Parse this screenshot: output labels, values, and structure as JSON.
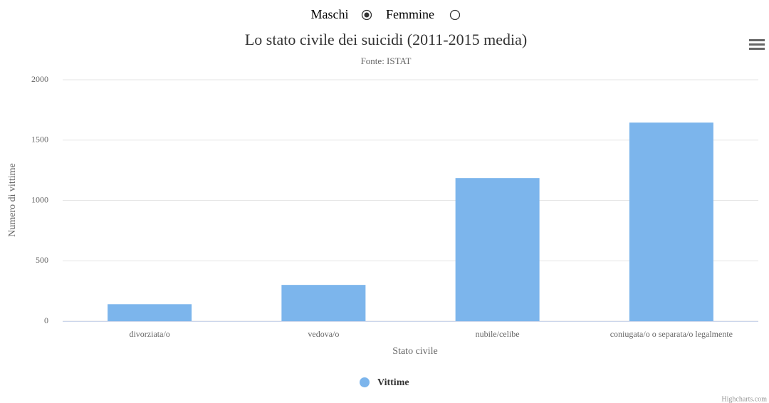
{
  "controls": {
    "options": [
      "Maschi",
      "Femmine"
    ],
    "selected": 0
  },
  "chart_data": {
    "type": "bar",
    "title": "Lo stato civile dei suicidi (2011-2015 media)",
    "subtitle": "Fonte: ISTAT",
    "xlabel": "Stato civile",
    "ylabel": "Numero di vittime",
    "categories": [
      "divorziata/o",
      "vedova/o",
      "nubile/celibe",
      "coniugata/o o separata/o legalmente"
    ],
    "series": [
      {
        "name": "Vittime",
        "color": "#7cb5ec",
        "values": [
          140,
          300,
          1185,
          1645
        ]
      }
    ],
    "ylim": [
      0,
      2000
    ],
    "yticks": [
      0,
      500,
      1000,
      1500,
      2000
    ],
    "grid": true,
    "legend": "bottom"
  },
  "credits": "Highcharts.com"
}
